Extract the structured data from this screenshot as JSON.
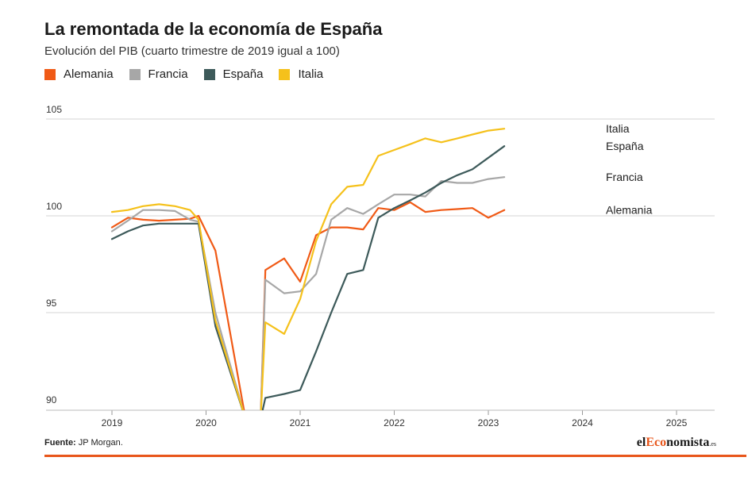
{
  "header": {
    "title": "La remontada de la economía de España",
    "subtitle": "Evolución del PIB (cuarto trimestre de 2019 igual a 100)"
  },
  "legend": [
    {
      "label": "Alemania",
      "color": "#f05a16"
    },
    {
      "label": "Francia",
      "color": "#a7a7a7"
    },
    {
      "label": "España",
      "color": "#3d5a5a"
    },
    {
      "label": "Italia",
      "color": "#f5c11b"
    }
  ],
  "footer": {
    "source_prefix": "Fuente:",
    "source_text": "JP Morgan.",
    "brand_pre": "el",
    "brand_highlight": "Eco",
    "brand_post": "nomista",
    "brand_tld": ".es"
  },
  "chart_data": {
    "type": "line",
    "title": "La remontada de la economía de España",
    "subtitle": "Evolución del PIB (cuarto trimestre de 2019 igual a 100)",
    "xlim": [
      2018.5,
      2025.5
    ],
    "ylim": [
      90,
      105
    ],
    "xticks": [
      2019,
      2020,
      2021,
      2022,
      2023,
      2024,
      2025
    ],
    "yticks": [
      90,
      95,
      100,
      105
    ],
    "grid": "horizontal",
    "legend_position": "top-left",
    "series": [
      {
        "name": "Alemania",
        "color": "#f05a16",
        "end_label": "Alemania",
        "points": [
          [
            2019.0,
            99.4
          ],
          [
            2019.17,
            99.9
          ],
          [
            2019.33,
            99.8
          ],
          [
            2019.5,
            99.75
          ],
          [
            2019.67,
            99.8
          ],
          [
            2019.83,
            99.85
          ],
          [
            2019.92,
            100.0
          ],
          [
            2020.1,
            98.2
          ],
          [
            2020.42,
            89.5
          ],
          [
            2020.58,
            89.5
          ],
          [
            2020.63,
            97.2
          ],
          [
            2020.83,
            97.8
          ],
          [
            2021.0,
            96.6
          ],
          [
            2021.17,
            99.0
          ],
          [
            2021.33,
            99.4
          ],
          [
            2021.5,
            99.4
          ],
          [
            2021.67,
            99.3
          ],
          [
            2021.83,
            100.4
          ],
          [
            2022.0,
            100.3
          ],
          [
            2022.17,
            100.7
          ],
          [
            2022.33,
            100.2
          ],
          [
            2022.5,
            100.3
          ],
          [
            2022.67,
            100.35
          ],
          [
            2022.83,
            100.4
          ],
          [
            2023.0,
            99.9
          ],
          [
            2023.17,
            100.3
          ]
        ]
      },
      {
        "name": "Francia",
        "color": "#a7a7a7",
        "end_label": "Francia",
        "points": [
          [
            2019.0,
            99.2
          ],
          [
            2019.17,
            99.75
          ],
          [
            2019.33,
            100.3
          ],
          [
            2019.5,
            100.3
          ],
          [
            2019.67,
            100.25
          ],
          [
            2019.83,
            99.8
          ],
          [
            2019.92,
            99.7
          ],
          [
            2020.1,
            95.0
          ],
          [
            2020.42,
            89.5
          ],
          [
            2020.58,
            89.5
          ],
          [
            2020.63,
            96.7
          ],
          [
            2020.83,
            96.0
          ],
          [
            2021.0,
            96.1
          ],
          [
            2021.17,
            97.0
          ],
          [
            2021.33,
            99.8
          ],
          [
            2021.5,
            100.4
          ],
          [
            2021.67,
            100.1
          ],
          [
            2021.83,
            100.6
          ],
          [
            2022.0,
            101.1
          ],
          [
            2022.17,
            101.1
          ],
          [
            2022.33,
            101.0
          ],
          [
            2022.5,
            101.8
          ],
          [
            2022.67,
            101.7
          ],
          [
            2022.83,
            101.7
          ],
          [
            2023.0,
            101.9
          ],
          [
            2023.17,
            102.0
          ]
        ]
      },
      {
        "name": "España",
        "color": "#3d5a5a",
        "end_label": "España",
        "points": [
          [
            2019.0,
            98.8
          ],
          [
            2019.17,
            99.2
          ],
          [
            2019.33,
            99.5
          ],
          [
            2019.5,
            99.6
          ],
          [
            2019.67,
            99.6
          ],
          [
            2019.83,
            99.6
          ],
          [
            2019.92,
            99.6
          ],
          [
            2020.1,
            94.3
          ],
          [
            2020.42,
            89.5
          ],
          [
            2020.58,
            89.5
          ],
          [
            2020.63,
            90.6
          ],
          [
            2020.83,
            90.8
          ],
          [
            2021.0,
            91.0
          ],
          [
            2021.17,
            93.0
          ],
          [
            2021.33,
            95.0
          ],
          [
            2021.5,
            97.0
          ],
          [
            2021.67,
            97.2
          ],
          [
            2021.83,
            99.9
          ],
          [
            2022.0,
            100.4
          ],
          [
            2022.17,
            100.8
          ],
          [
            2022.33,
            101.2
          ],
          [
            2022.5,
            101.7
          ],
          [
            2022.67,
            102.1
          ],
          [
            2022.83,
            102.4
          ],
          [
            2023.0,
            103.0
          ],
          [
            2023.17,
            103.6
          ]
        ]
      },
      {
        "name": "Italia",
        "color": "#f5c11b",
        "end_label": "Italia",
        "points": [
          [
            2019.0,
            100.2
          ],
          [
            2019.17,
            100.3
          ],
          [
            2019.33,
            100.5
          ],
          [
            2019.5,
            100.6
          ],
          [
            2019.67,
            100.5
          ],
          [
            2019.83,
            100.3
          ],
          [
            2019.92,
            99.8
          ],
          [
            2020.1,
            94.6
          ],
          [
            2020.42,
            89.5
          ],
          [
            2020.58,
            89.5
          ],
          [
            2020.63,
            94.5
          ],
          [
            2020.83,
            93.9
          ],
          [
            2021.0,
            95.7
          ],
          [
            2021.17,
            98.7
          ],
          [
            2021.33,
            100.6
          ],
          [
            2021.5,
            101.5
          ],
          [
            2021.67,
            101.6
          ],
          [
            2021.83,
            103.1
          ],
          [
            2022.0,
            103.4
          ],
          [
            2022.17,
            103.7
          ],
          [
            2022.33,
            104.0
          ],
          [
            2022.5,
            103.8
          ],
          [
            2022.67,
            104.0
          ],
          [
            2022.83,
            104.2
          ],
          [
            2023.0,
            104.4
          ],
          [
            2023.17,
            104.5
          ]
        ]
      }
    ]
  }
}
